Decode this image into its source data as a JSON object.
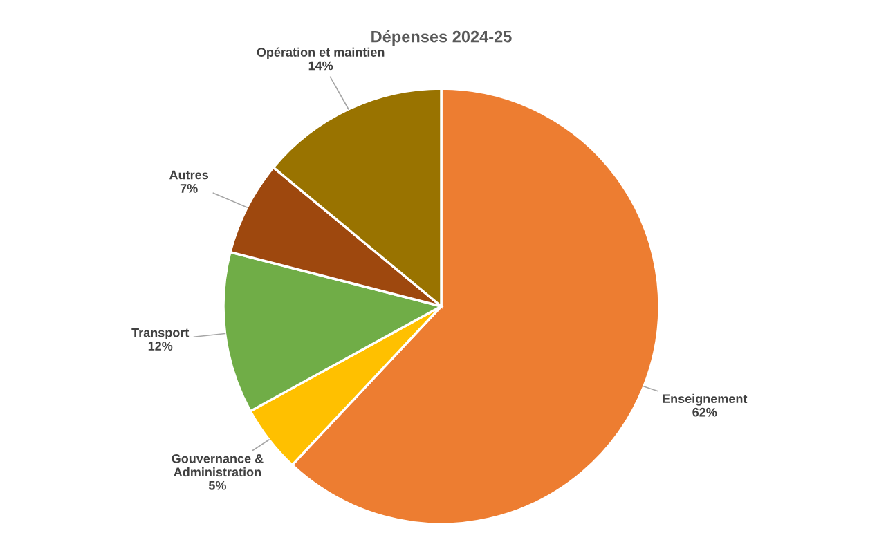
{
  "chart_data": {
    "type": "pie",
    "title": "Dépenses 2024-25",
    "categories": [
      "Enseignement",
      "Gouvernance & Administration",
      "Transport",
      "Autres",
      "Opération et maintien"
    ],
    "values": [
      62,
      5,
      12,
      7,
      14
    ],
    "value_labels": [
      "62%",
      "5%",
      "12%",
      "7%",
      "14%"
    ],
    "colors": [
      "#ed7d31",
      "#ffc000",
      "#70ad47",
      "#9e480e",
      "#997300"
    ],
    "legend": false
  }
}
